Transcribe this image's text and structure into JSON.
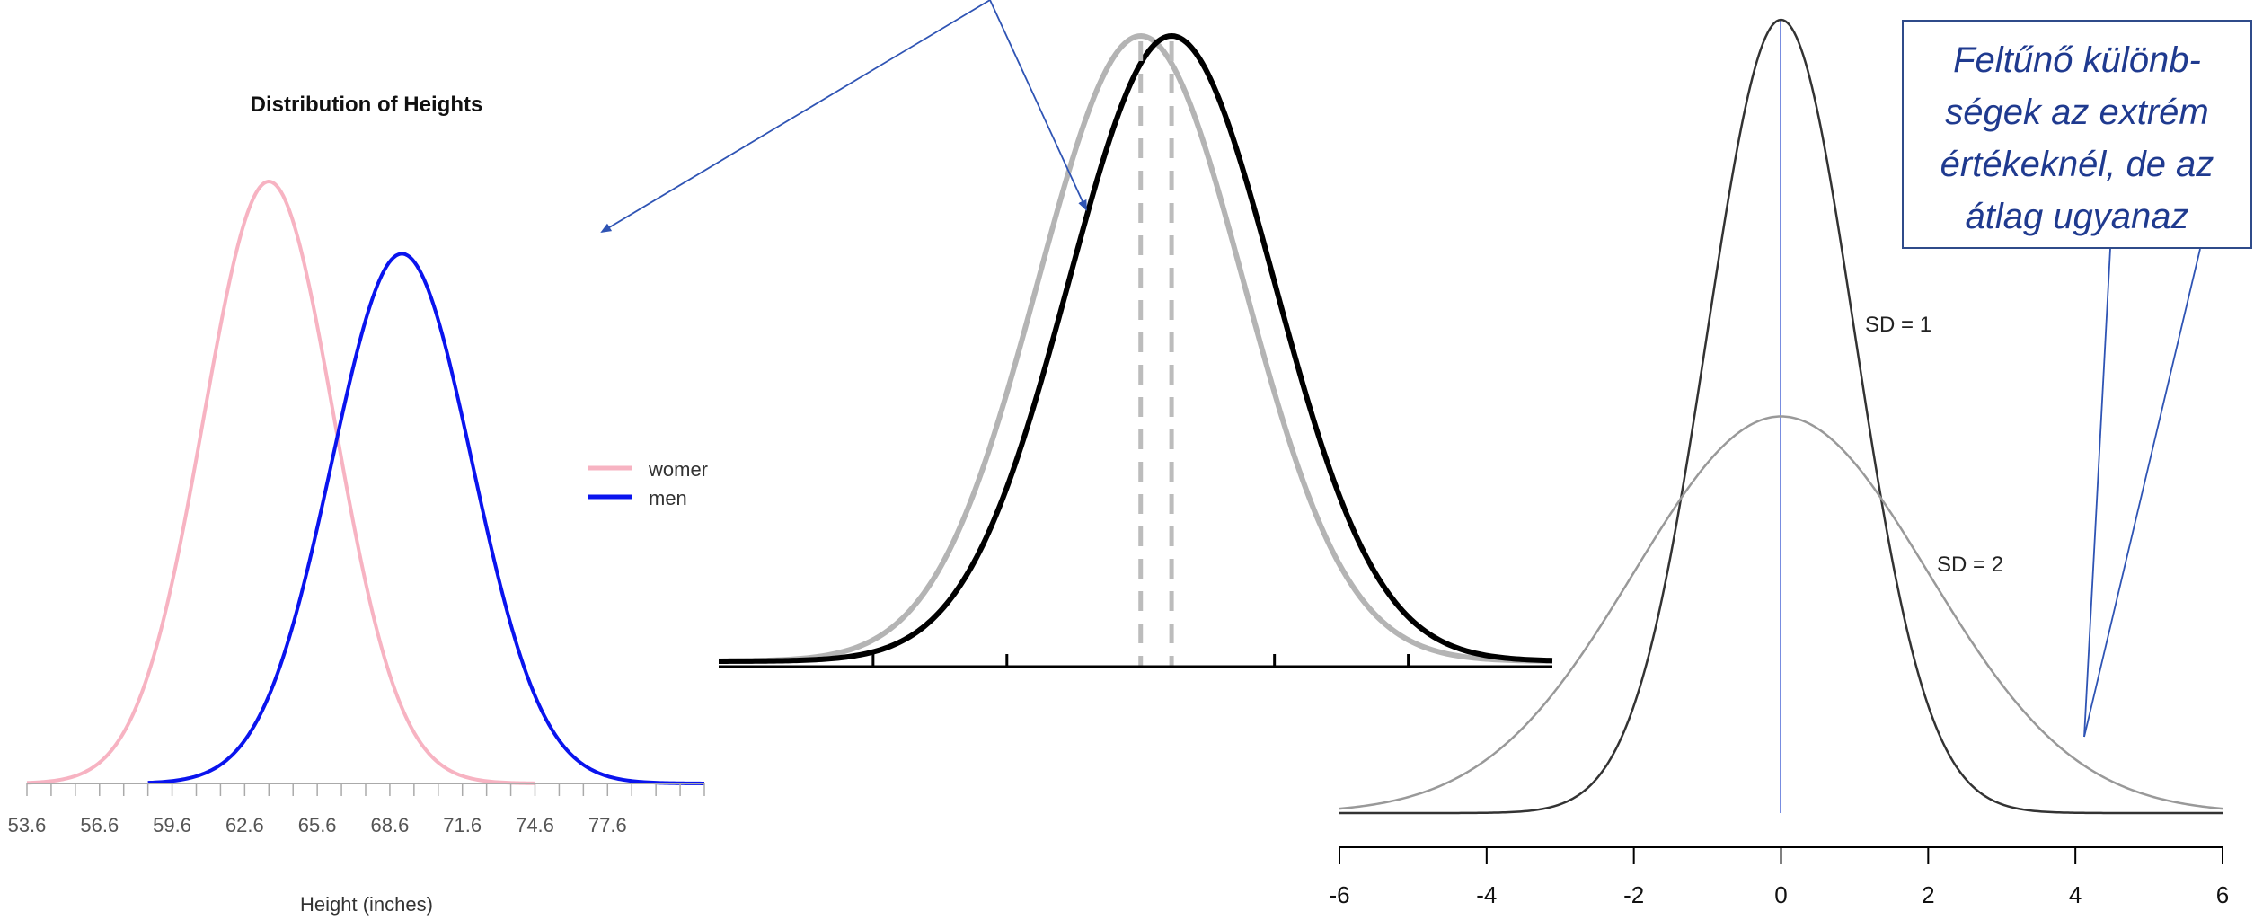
{
  "chart_data": [
    {
      "type": "line",
      "title": "Distribution of Heights",
      "xlabel": "Height (inches)",
      "ylabel": "",
      "x_ticks": [
        "53.6",
        "56.6",
        "59.6",
        "62.6",
        "65.6",
        "68.6",
        "71.6",
        "74.6",
        "77.6"
      ],
      "xlim": [
        53.6,
        81.6
      ],
      "series": [
        {
          "name": "women",
          "legend_label": "womer",
          "mean": 63.6,
          "sd": 2.7,
          "peak": 1.0,
          "x_range": [
            53.6,
            74.6
          ],
          "color": "#f7b3c2"
        },
        {
          "name": "men",
          "legend_label": "men",
          "mean": 69.1,
          "sd": 2.9,
          "peak": 0.88,
          "x_range": [
            58.6,
            81.6
          ],
          "color": "#0a14ee"
        }
      ],
      "legend": "right"
    },
    {
      "type": "line",
      "title": "",
      "xlabel": "",
      "ylabel": "",
      "xlim": [
        -4.1,
        4.0
      ],
      "series": [
        {
          "mean": 0.0,
          "sd": 1.0,
          "color": "#b4b4b4",
          "linestyle": "solid"
        },
        {
          "mean": 0.3,
          "sd": 1.0,
          "color": "#000000",
          "linestyle": "solid"
        }
      ],
      "mean_lines": [
        {
          "x": 0.0,
          "color": "#bcbcbc",
          "linestyle": "dashed"
        },
        {
          "x": 0.3,
          "color": "#bcbcbc",
          "linestyle": "dashed"
        }
      ],
      "minor_ticks": [
        -2.6,
        -1.3,
        1.3,
        2.6
      ]
    },
    {
      "type": "line",
      "title": "",
      "xlabel": "",
      "ylabel": "",
      "xlim": [
        -6,
        6
      ],
      "x_ticks": [
        "-6",
        "-4",
        "-2",
        "0",
        "2",
        "4",
        "6"
      ],
      "series": [
        {
          "name": "SD = 1",
          "mean": 0,
          "sd": 1,
          "color": "#333333"
        },
        {
          "name": "SD = 2",
          "mean": 0,
          "sd": 2,
          "color": "#999999"
        }
      ],
      "mean_line": {
        "x": 0,
        "color": "#4a66d6"
      },
      "labels": [
        "SD = 1",
        "SD = 2"
      ]
    }
  ],
  "callout": {
    "lines": [
      "Feltűnő különb-",
      "ségek az extrém",
      "értékeknél, de az",
      "átlag ugyanaz"
    ],
    "color": "#1f3a8f"
  }
}
